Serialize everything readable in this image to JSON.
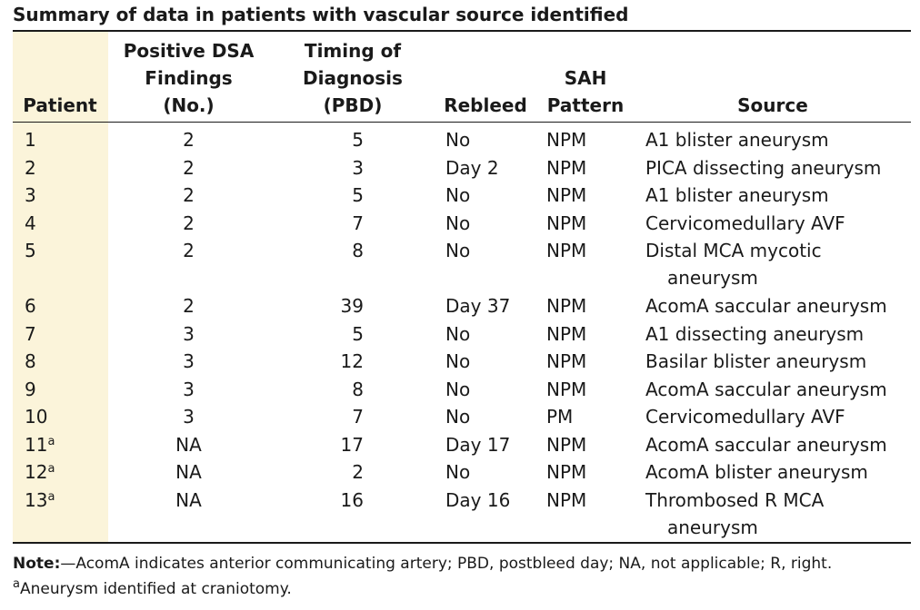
{
  "title": "Summary of data in patients with vascular source identified",
  "columns": [
    {
      "lines": [
        "Patient"
      ]
    },
    {
      "lines": [
        "Positive DSA",
        "Findings",
        "(No.)"
      ]
    },
    {
      "lines": [
        "Timing of",
        "Diagnosis",
        "(PBD)"
      ]
    },
    {
      "lines": [
        "Rebleed"
      ]
    },
    {
      "lines": [
        "SAH",
        "Pattern"
      ]
    },
    {
      "lines": [
        "Source"
      ]
    }
  ],
  "rows": [
    {
      "patient": "1",
      "sup": "",
      "dsa": "2",
      "timing": "5",
      "rebleed": "No",
      "sah": "NPM",
      "source": [
        "A1 blister aneurysm"
      ]
    },
    {
      "patient": "2",
      "sup": "",
      "dsa": "2",
      "timing": "3",
      "rebleed": "Day 2",
      "sah": "NPM",
      "source": [
        "PICA dissecting aneurysm"
      ]
    },
    {
      "patient": "3",
      "sup": "",
      "dsa": "2",
      "timing": "5",
      "rebleed": "No",
      "sah": "NPM",
      "source": [
        "A1 blister aneurysm"
      ]
    },
    {
      "patient": "4",
      "sup": "",
      "dsa": "2",
      "timing": "7",
      "rebleed": "No",
      "sah": "NPM",
      "source": [
        "Cervicomedullary AVF"
      ]
    },
    {
      "patient": "5",
      "sup": "",
      "dsa": "2",
      "timing": "8",
      "rebleed": "No",
      "sah": "NPM",
      "source": [
        "Distal MCA mycotic",
        "aneurysm"
      ]
    },
    {
      "patient": "6",
      "sup": "",
      "dsa": "2",
      "timing": "39",
      "rebleed": "Day 37",
      "sah": "NPM",
      "source": [
        "AcomA saccular aneurysm"
      ]
    },
    {
      "patient": "7",
      "sup": "",
      "dsa": "3",
      "timing": "5",
      "rebleed": "No",
      "sah": "NPM",
      "source": [
        "A1 dissecting aneurysm"
      ]
    },
    {
      "patient": "8",
      "sup": "",
      "dsa": "3",
      "timing": "12",
      "rebleed": "No",
      "sah": "NPM",
      "source": [
        "Basilar blister aneurysm"
      ]
    },
    {
      "patient": "9",
      "sup": "",
      "dsa": "3",
      "timing": "8",
      "rebleed": "No",
      "sah": "NPM",
      "source": [
        "AcomA saccular aneurysm"
      ]
    },
    {
      "patient": "10",
      "sup": "",
      "dsa": "3",
      "timing": "7",
      "rebleed": "No",
      "sah": "PM",
      "source": [
        "Cervicomedullary AVF"
      ]
    },
    {
      "patient": "11",
      "sup": "a",
      "dsa": "NA",
      "timing": "17",
      "rebleed": "Day 17",
      "sah": "NPM",
      "source": [
        "AcomA saccular aneurysm"
      ]
    },
    {
      "patient": "12",
      "sup": "a",
      "dsa": "NA",
      "timing": "2",
      "rebleed": "No",
      "sah": "NPM",
      "source": [
        "AcomA blister aneurysm"
      ]
    },
    {
      "patient": "13",
      "sup": "a",
      "dsa": "NA",
      "timing": "16",
      "rebleed": "Day 16",
      "sah": "NPM",
      "source": [
        "Thrombosed R MCA",
        "aneurysm"
      ]
    }
  ],
  "note": {
    "label": "Note:",
    "text": "—AcomA indicates anterior communicating artery; PBD, postbleed day; NA, not applicable; R, right."
  },
  "footnote": {
    "marker": "a",
    "text": "Aneurysm identified at craniotomy."
  }
}
